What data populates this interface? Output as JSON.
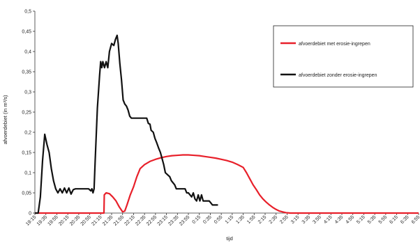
{
  "chart_data": {
    "type": "line",
    "title": "",
    "xlabel": "tijd",
    "ylabel": "afvoerdebiet (in m³/s)",
    "ylim": [
      0,
      0.5
    ],
    "yticks": [
      "0",
      "0,05",
      "0,1",
      "0,15",
      "0,2",
      "0,25",
      "0,3",
      "0,35",
      "0,4",
      "0,45",
      "0,5"
    ],
    "grid": false,
    "legend_position": "top-right",
    "categories": [
      "19:15",
      "19:35",
      "19:55",
      "20:15",
      "20:35",
      "20:55",
      "21:15",
      "21:35",
      "21:55",
      "22:15",
      "22:35",
      "22:55",
      "23:15",
      "23:35",
      "23:55",
      "0:15",
      "0:35",
      "0:55",
      "1:15",
      "1:35",
      "1:55",
      "2:15",
      "2:35",
      "2:55",
      "3:15",
      "3:35",
      "3:55",
      "4:15",
      "4:35",
      "4:55",
      "5:15",
      "5:35",
      "5:55",
      "6:15",
      "6:35",
      "6:55"
    ],
    "series": [
      {
        "name": "afvoerdebiet met erosie-ingrepen",
        "color": "#e8202a",
        "points": [
          [
            0,
            0
          ],
          [
            6.3,
            0
          ],
          [
            6.33,
            0.045
          ],
          [
            6.5,
            0.05
          ],
          [
            6.8,
            0.048
          ],
          [
            7.1,
            0.04
          ],
          [
            7.4,
            0.03
          ],
          [
            7.7,
            0.015
          ],
          [
            8.0,
            0.003
          ],
          [
            8.2,
            0.005
          ],
          [
            8.4,
            0.02
          ],
          [
            8.7,
            0.045
          ],
          [
            9.0,
            0.065
          ],
          [
            9.3,
            0.09
          ],
          [
            9.6,
            0.11
          ],
          [
            10.0,
            0.12
          ],
          [
            10.5,
            0.128
          ],
          [
            11,
            0.133
          ],
          [
            11.5,
            0.137
          ],
          [
            12,
            0.14
          ],
          [
            12.5,
            0.142
          ],
          [
            13,
            0.143
          ],
          [
            13.5,
            0.144
          ],
          [
            14,
            0.144
          ],
          [
            14.5,
            0.143
          ],
          [
            15,
            0.142
          ],
          [
            15.5,
            0.14
          ],
          [
            16,
            0.138
          ],
          [
            16.5,
            0.136
          ],
          [
            17,
            0.133
          ],
          [
            17.5,
            0.13
          ],
          [
            18,
            0.126
          ],
          [
            18.5,
            0.12
          ],
          [
            19,
            0.113
          ],
          [
            19.3,
            0.1
          ],
          [
            19.6,
            0.085
          ],
          [
            19.9,
            0.07
          ],
          [
            20.2,
            0.058
          ],
          [
            20.5,
            0.045
          ],
          [
            20.8,
            0.035
          ],
          [
            21.1,
            0.027
          ],
          [
            21.4,
            0.02
          ],
          [
            21.7,
            0.014
          ],
          [
            22,
            0.009
          ],
          [
            22.3,
            0.005
          ],
          [
            22.6,
            0.003
          ],
          [
            22.9,
            0.001
          ],
          [
            23.3,
            0
          ],
          [
            35,
            0
          ]
        ]
      },
      {
        "name": "afvoerdebiet zonder erosie-ingrepen",
        "color": "#111111",
        "points": [
          [
            0,
            0
          ],
          [
            0.3,
            0
          ],
          [
            0.5,
            0.04
          ],
          [
            0.7,
            0.13
          ],
          [
            0.9,
            0.195
          ],
          [
            1.1,
            0.17
          ],
          [
            1.3,
            0.15
          ],
          [
            1.5,
            0.11
          ],
          [
            1.7,
            0.08
          ],
          [
            1.9,
            0.06
          ],
          [
            2.1,
            0.05
          ],
          [
            2.3,
            0.06
          ],
          [
            2.5,
            0.05
          ],
          [
            2.7,
            0.062
          ],
          [
            2.9,
            0.05
          ],
          [
            3.1,
            0.062
          ],
          [
            3.3,
            0.047
          ],
          [
            3.5,
            0.058
          ],
          [
            3.7,
            0.06
          ],
          [
            4.0,
            0.06
          ],
          [
            4.3,
            0.06
          ],
          [
            4.6,
            0.06
          ],
          [
            4.9,
            0.06
          ],
          [
            5.1,
            0.055
          ],
          [
            5.2,
            0.06
          ],
          [
            5.3,
            0.05
          ],
          [
            5.4,
            0.06
          ],
          [
            5.5,
            0.13
          ],
          [
            5.7,
            0.26
          ],
          [
            5.9,
            0.34
          ],
          [
            6.0,
            0.375
          ],
          [
            6.1,
            0.36
          ],
          [
            6.2,
            0.375
          ],
          [
            6.35,
            0.36
          ],
          [
            6.5,
            0.375
          ],
          [
            6.65,
            0.36
          ],
          [
            6.8,
            0.4
          ],
          [
            7.0,
            0.42
          ],
          [
            7.2,
            0.415
          ],
          [
            7.35,
            0.43
          ],
          [
            7.5,
            0.44
          ],
          [
            7.6,
            0.42
          ],
          [
            7.75,
            0.37
          ],
          [
            7.9,
            0.33
          ],
          [
            8.05,
            0.28
          ],
          [
            8.2,
            0.27
          ],
          [
            8.35,
            0.265
          ],
          [
            8.5,
            0.255
          ],
          [
            8.65,
            0.24
          ],
          [
            8.8,
            0.235
          ],
          [
            9.1,
            0.235
          ],
          [
            9.4,
            0.235
          ],
          [
            9.7,
            0.235
          ],
          [
            10.0,
            0.235
          ],
          [
            10.2,
            0.235
          ],
          [
            10.35,
            0.222
          ],
          [
            10.5,
            0.22
          ],
          [
            10.6,
            0.205
          ],
          [
            10.8,
            0.2
          ],
          [
            10.95,
            0.185
          ],
          [
            11.1,
            0.175
          ],
          [
            11.3,
            0.16
          ],
          [
            11.45,
            0.15
          ],
          [
            11.6,
            0.135
          ],
          [
            11.75,
            0.12
          ],
          [
            11.9,
            0.1
          ],
          [
            12.1,
            0.095
          ],
          [
            12.3,
            0.09
          ],
          [
            12.45,
            0.08
          ],
          [
            12.6,
            0.075
          ],
          [
            12.75,
            0.07
          ],
          [
            12.9,
            0.06
          ],
          [
            13.1,
            0.06
          ],
          [
            13.4,
            0.06
          ],
          [
            13.7,
            0.06
          ],
          [
            13.85,
            0.05
          ],
          [
            14.0,
            0.05
          ],
          [
            14.15,
            0.045
          ],
          [
            14.3,
            0.04
          ],
          [
            14.45,
            0.05
          ],
          [
            14.6,
            0.035
          ],
          [
            14.75,
            0.03
          ],
          [
            14.9,
            0.045
          ],
          [
            15.05,
            0.03
          ],
          [
            15.2,
            0.045
          ],
          [
            15.35,
            0.03
          ],
          [
            15.6,
            0.03
          ],
          [
            15.9,
            0.03
          ],
          [
            16.2,
            0.02
          ],
          [
            16.5,
            0.02
          ],
          [
            16.7,
            0.02
          ]
        ]
      }
    ]
  }
}
